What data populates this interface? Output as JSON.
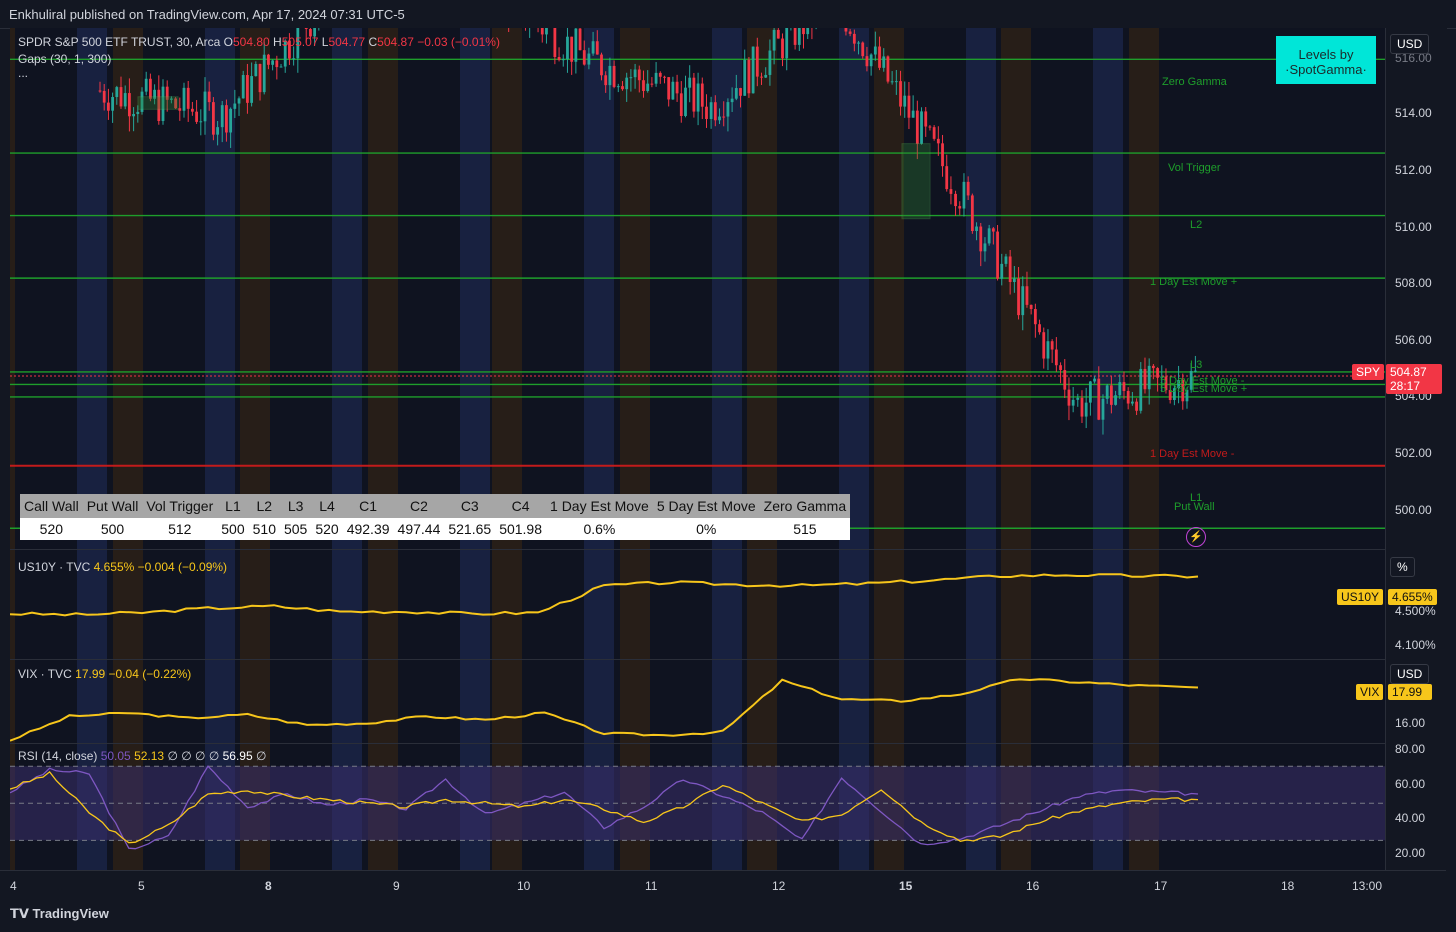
{
  "header": {
    "published": "Enkhuliral published on TradingView.com, Apr 17, 2024 07:31 UTC-5"
  },
  "legend": {
    "symbol": "SPDR S&P 500 ETF TRUST, 30, Arca",
    "o_label": "O",
    "o": "504.80",
    "h_label": "H",
    "h": "505.07",
    "l_label": "L",
    "l": "504.77",
    "c_label": "C",
    "c": "504.87",
    "change": "−0.03 (−0.01%)",
    "gaps": "Gaps (30, 1, 300)",
    "more": "..."
  },
  "currency": "USD",
  "spotgamma": {
    "line1": "Levels by",
    "line2": "·SpotGamma·"
  },
  "price_axis": {
    "ticks": [
      "514.00",
      "512.00",
      "510.00",
      "508.00",
      "506.00",
      "504.00",
      "502.00",
      "500.00"
    ],
    "top_partial": "516.00"
  },
  "last_price": {
    "symbol": "SPY",
    "price": "504.87",
    "countdown": "28:17"
  },
  "level_labels": {
    "zero_gamma": "Zero Gamma",
    "vol_trigger": "Vol Trigger",
    "l2": "L2",
    "one_day_plus": "1 Day Est Move +",
    "l3": "L3",
    "five_day_minus": "5 Day Est Move -",
    "five_day_plus": "5 Day Est Move +",
    "one_day_minus": "1 Day Est Move -",
    "l1": "L1",
    "put_wall": "Put Wall"
  },
  "levels_table": {
    "headers": [
      "Call Wall",
      "Put Wall",
      "Vol Trigger",
      "L1",
      "L2",
      "L3",
      "L4",
      "C1",
      "C2",
      "C3",
      "C4",
      "1 Day Est Move",
      "5 Day Est Move",
      "Zero Gamma"
    ],
    "values": [
      "520",
      "500",
      "512",
      "500",
      "510",
      "505",
      "520",
      "492.39",
      "497.44",
      "521.65",
      "501.98",
      "0.6%",
      "0%",
      "515"
    ]
  },
  "us10y": {
    "label": "US10Y · TVC",
    "value": "4.655%",
    "change": "−0.004 (−0.09%)",
    "axis_unit": "%",
    "tag": "US10Y",
    "tag_value": "4.655%",
    "ticks": [
      "4.500%",
      "4.100%"
    ]
  },
  "vix": {
    "label": "VIX · TVC",
    "value": "17.99",
    "change": "−0.04 (−0.22%)",
    "axis_unit": "USD",
    "tag": "VIX",
    "tag_value": "17.99",
    "ticks": [
      "16.00"
    ]
  },
  "rsi": {
    "label": "RSI (14, close)",
    "v1": "50.05",
    "v2": "52.13",
    "empties": "∅ ∅ ∅ ∅",
    "v3": "56.95",
    "empty_end": "∅",
    "ticks": [
      "80.00",
      "60.00",
      "40.00",
      "20.00"
    ]
  },
  "time_axis": {
    "labels": [
      "4",
      "5",
      "8",
      "9",
      "10",
      "11",
      "12",
      "15",
      "16",
      "17",
      "18",
      "13:00"
    ],
    "bold": [
      "8",
      "15"
    ]
  },
  "footer": {
    "brand": "TradingView"
  },
  "colors": {
    "up": "#26a69a",
    "down": "#f23645",
    "level_green": "#1e9e2b",
    "level_red": "#c21b1b",
    "yellow": "#f7c61b",
    "rsi": "#7e57c2"
  },
  "chart_data": [
    {
      "type": "line",
      "title": "SPDR S&P 500 ETF TRUST, 30, Arca",
      "ylabel": "USD",
      "ylim": [
        499.4,
        516
      ],
      "x": [
        "Apr 4",
        "Apr 5",
        "Apr 8",
        "Apr 9",
        "Apr 10",
        "Apr 11",
        "Apr 12",
        "Apr 15",
        "Apr 16",
        "Apr 17"
      ],
      "series": [
        {
          "name": "SPY",
          "values": [
            514.0,
            513.2,
            517.5,
            517.8,
            515.0,
            513.5,
            517.0,
            511.0,
            504.0,
            504.87
          ]
        }
      ],
      "levels": [
        {
          "name": "Zero Gamma",
          "value": 515
        },
        {
          "name": "Vol Trigger",
          "value": 512
        },
        {
          "name": "L2",
          "value": 510
        },
        {
          "name": "1 Day Est Move +",
          "value": 508
        },
        {
          "name": "L3",
          "value": 505
        },
        {
          "name": "5 Day Est Move -",
          "value": 504.6
        },
        {
          "name": "5 Day Est Move +",
          "value": 504.2
        },
        {
          "name": "1 Day Est Move -",
          "value": 502
        },
        {
          "name": "L1",
          "value": 500
        },
        {
          "name": "Put Wall",
          "value": 500
        }
      ]
    },
    {
      "type": "line",
      "title": "US10Y · TVC",
      "ylim": [
        3.9,
        4.9
      ],
      "series": [
        {
          "name": "US10Y",
          "values": [
            4.31,
            4.3,
            4.32,
            4.36,
            4.38,
            4.33,
            4.33,
            4.31,
            4.32,
            4.57,
            4.6,
            4.58,
            4.57,
            4.59,
            4.62,
            4.66,
            4.67,
            4.66,
            4.655
          ]
        }
      ]
    },
    {
      "type": "line",
      "title": "VIX · TVC",
      "ylim": [
        14.8,
        19.6
      ],
      "series": [
        {
          "name": "VIX",
          "values": [
            14.9,
            16.3,
            16.5,
            16.2,
            16.4,
            15.8,
            15.9,
            16.3,
            16.1,
            16.5,
            15.3,
            15.2,
            15.4,
            18.4,
            17.3,
            17.2,
            17.6,
            18.5,
            18.3,
            18.1,
            17.99
          ]
        }
      ]
    },
    {
      "type": "line",
      "title": "RSI (14, close)",
      "ylim": [
        14,
        82
      ],
      "series": [
        {
          "name": "RSI",
          "values": [
            56,
            68,
            66,
            25,
            32,
            70,
            48,
            55,
            49,
            52,
            47,
            63,
            44,
            50,
            56,
            37,
            48,
            63,
            54,
            45,
            30,
            64,
            46,
            28,
            31,
            38,
            46,
            54,
            57,
            56,
            55
          ]
        },
        {
          "name": "RSI MA",
          "values": [
            58,
            66,
            45,
            28,
            38,
            55,
            57,
            54,
            52,
            50,
            48,
            52,
            50,
            48,
            52,
            47,
            40,
            48,
            60,
            50,
            40,
            44,
            58,
            40,
            30,
            32,
            40,
            46,
            50,
            52,
            52
          ]
        }
      ],
      "bands": [
        70,
        50,
        30
      ]
    }
  ]
}
